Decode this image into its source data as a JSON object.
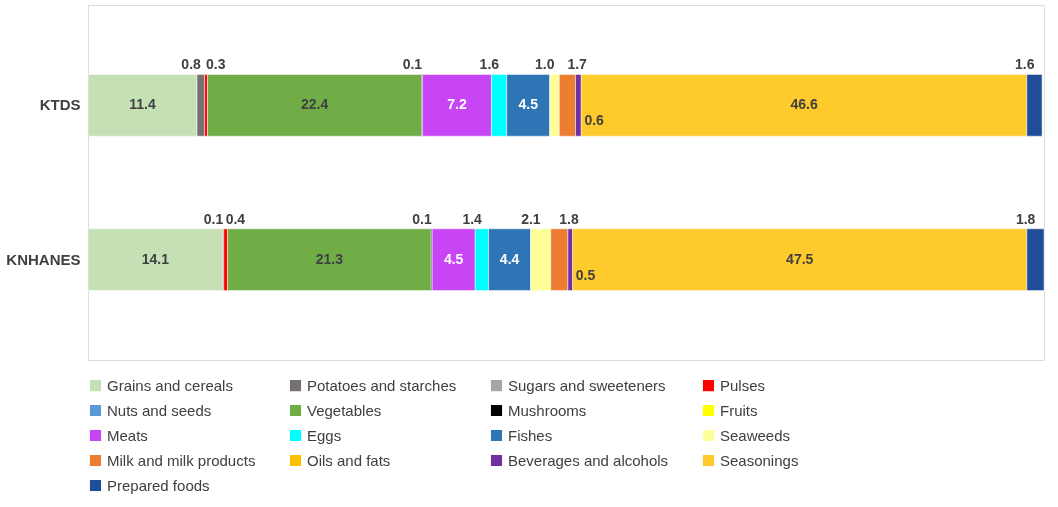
{
  "chart_data": {
    "type": "bar",
    "orientation": "horizontal",
    "stacked": true,
    "legend": "bottom",
    "categories": [
      "KTDS",
      "KNHANES"
    ],
    "series": [
      {
        "name": "Grains and cereals",
        "color": "#c5e0b4",
        "values": [
          11.4,
          14.1
        ],
        "value_labels": [
          "11.4",
          "14.1"
        ]
      },
      {
        "name": "Potatoes and starches",
        "color": "#767171",
        "values": [
          0.8,
          0.1
        ],
        "value_labels": [
          "0.8",
          "0.1"
        ]
      },
      {
        "name": "Sugars and sweeteners",
        "color": "#a5a5a5",
        "values": [
          null,
          null
        ],
        "value_labels": [
          null,
          null
        ]
      },
      {
        "name": "Pulses",
        "color": "#ff0000",
        "values": [
          0.3,
          0.4
        ],
        "value_labels": [
          "0.3",
          "0.4"
        ]
      },
      {
        "name": "Nuts and seeds",
        "color": "#5b9bd5",
        "values": [
          null,
          null
        ],
        "value_labels": [
          null,
          null
        ]
      },
      {
        "name": "Vegetables",
        "color": "#70ad47",
        "values": [
          22.4,
          21.3
        ],
        "value_labels": [
          "22.4",
          "21.3"
        ]
      },
      {
        "name": "Mushrooms",
        "color": "#000000",
        "values": [
          0.1,
          0.1
        ],
        "value_labels": [
          "0.1",
          "0.1"
        ]
      },
      {
        "name": "Fruits",
        "color": "#ffff00",
        "values": [
          null,
          null
        ],
        "value_labels": [
          null,
          null
        ]
      },
      {
        "name": "Meats",
        "color": "#c745f5",
        "values": [
          7.2,
          4.5
        ],
        "value_labels": [
          "7.2",
          "4.5"
        ]
      },
      {
        "name": "Eggs",
        "color": "#00ffff",
        "values": [
          1.6,
          1.4
        ],
        "value_labels": [
          "1.6",
          "1.4"
        ]
      },
      {
        "name": "Fishes",
        "color": "#2e75b6",
        "values": [
          4.5,
          4.4
        ],
        "value_labels": [
          "4.5",
          "4.4"
        ]
      },
      {
        "name": "Seaweeds",
        "color": "#ffff99",
        "values": [
          1.0,
          2.1
        ],
        "value_labels": [
          "1.0",
          "2.1"
        ]
      },
      {
        "name": "Milk and milk products",
        "color": "#ed7d31",
        "values": [
          1.7,
          1.8
        ],
        "value_labels": [
          "1.7",
          "1.8"
        ]
      },
      {
        "name": "Oils and fats",
        "color": "#ffc000",
        "values": [
          null,
          null
        ],
        "value_labels": [
          null,
          null
        ]
      },
      {
        "name": "Beverages and alcohols",
        "color": "#7030a0",
        "values": [
          0.6,
          0.5
        ],
        "value_labels": [
          "0.6",
          "0.5"
        ]
      },
      {
        "name": "Seasonings",
        "color": "#ffca2c",
        "values": [
          46.6,
          47.5
        ],
        "value_labels": [
          "46.6",
          "47.5"
        ]
      },
      {
        "name": "Prepared foods",
        "color": "#1f4e99",
        "values": [
          1.6,
          1.8
        ],
        "value_labels": [
          "1.6",
          "1.8"
        ]
      }
    ]
  }
}
